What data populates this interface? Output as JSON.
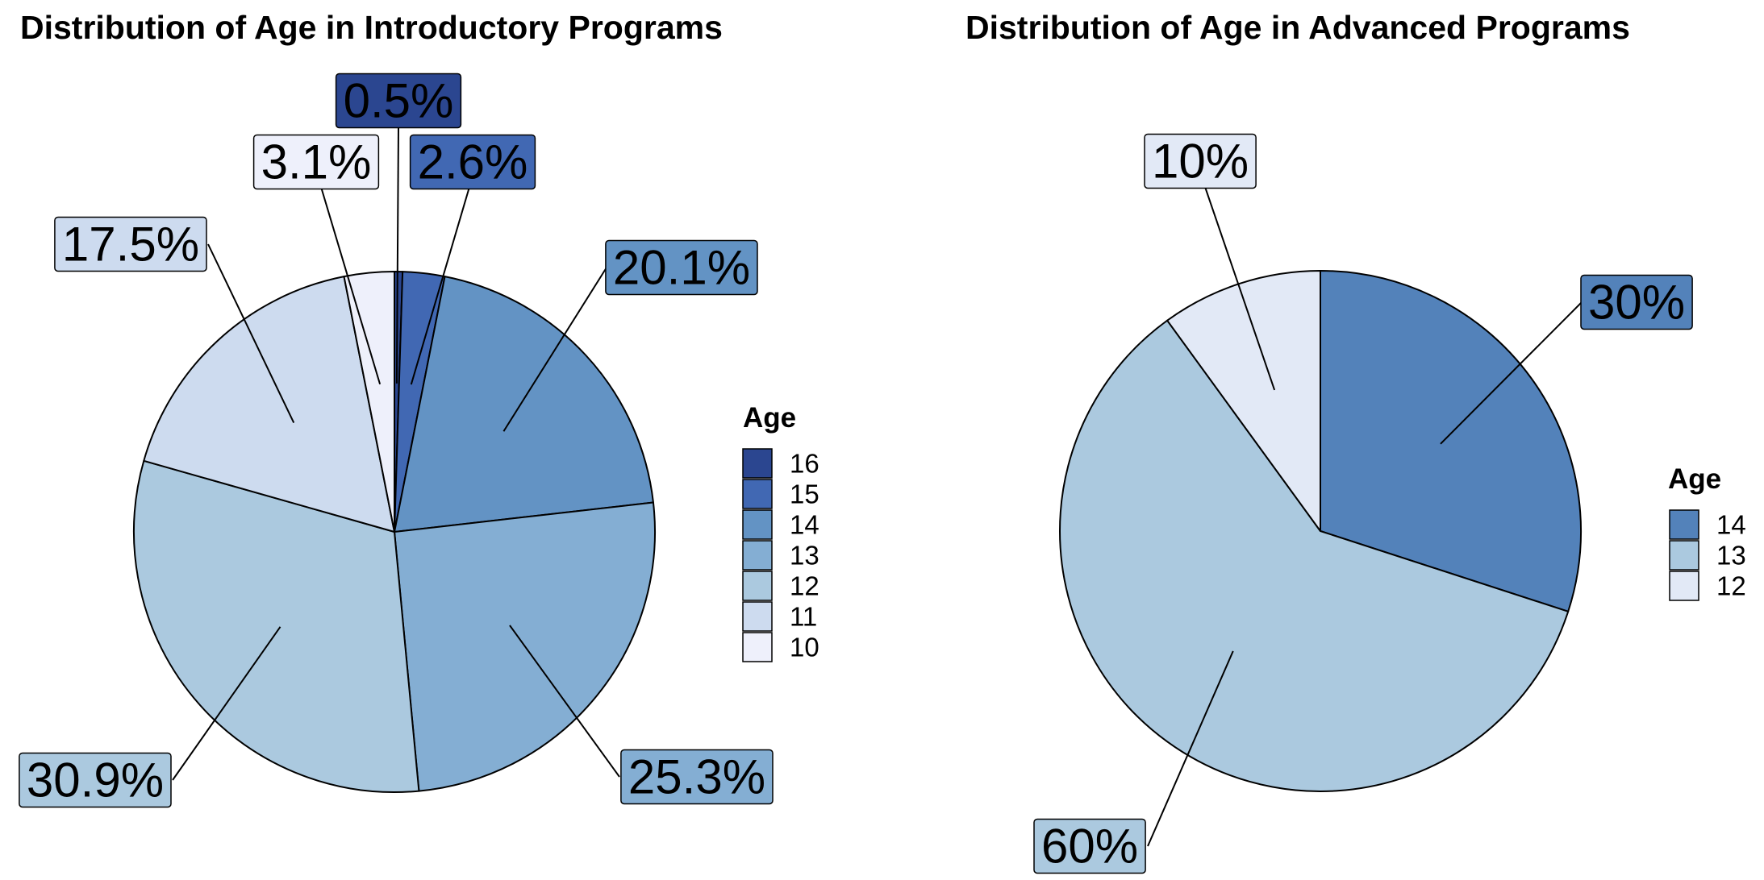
{
  "chart_data": [
    {
      "type": "pie",
      "title": "Distribution of Age in Introductory Programs",
      "legend_title": "Age",
      "legend_position": "right",
      "slices": [
        {
          "label": "16",
          "value": 0.5,
          "text": "0.5%",
          "color": "#2b4690"
        },
        {
          "label": "15",
          "value": 2.6,
          "text": "2.6%",
          "color": "#4168b3"
        },
        {
          "label": "14",
          "value": 20.1,
          "text": "20.1%",
          "color": "#6393c4"
        },
        {
          "label": "13",
          "value": 25.3,
          "text": "25.3%",
          "color": "#84aed3"
        },
        {
          "label": "12",
          "value": 30.9,
          "text": "30.9%",
          "color": "#abc9df"
        },
        {
          "label": "11",
          "value": 17.5,
          "text": "17.5%",
          "color": "#cddbef"
        },
        {
          "label": "10",
          "value": 3.1,
          "text": "3.1%",
          "color": "#eef0fb"
        }
      ]
    },
    {
      "type": "pie",
      "title": "Distribution of Age in Advanced Programs",
      "legend_title": "Age",
      "legend_position": "right",
      "slices": [
        {
          "label": "14",
          "value": 30,
          "text": "30%",
          "color": "#5382ba"
        },
        {
          "label": "13",
          "value": 60,
          "text": "60%",
          "color": "#abc9df"
        },
        {
          "label": "12",
          "value": 10,
          "text": "10%",
          "color": "#e2e9f6"
        }
      ]
    }
  ]
}
